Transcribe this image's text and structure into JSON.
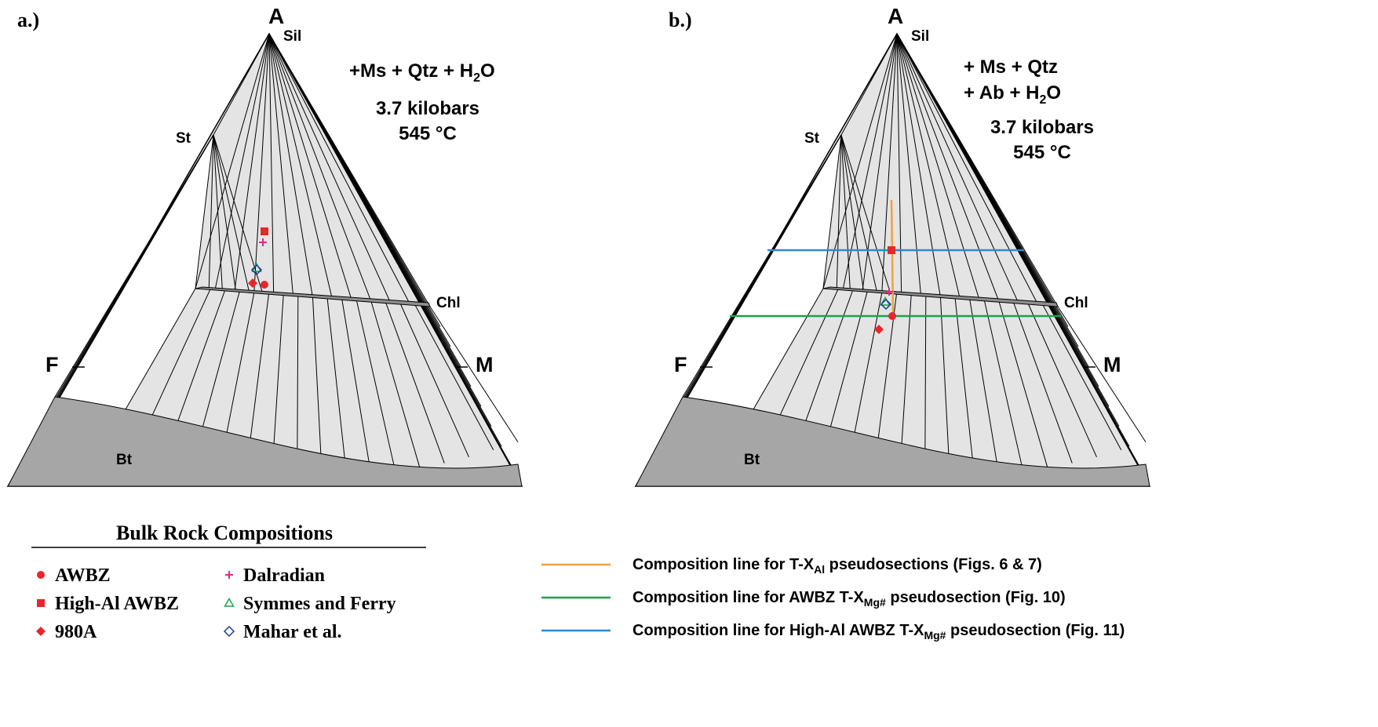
{
  "panel_a": {
    "tag": "a.)",
    "apex_labels": {
      "A": "A",
      "Sil": "Sil",
      "St": "St",
      "Chl": "Chl",
      "F": "F",
      "M": "M",
      "Bt": "Bt"
    },
    "assemblage": {
      "line1": "+Ms + Qtz + H",
      "line1_sub": "2",
      "line1_tail": "O"
    },
    "pressure": "3.7 kilobars",
    "temperature": "545 °C"
  },
  "panel_b": {
    "tag": "b.)",
    "apex_labels": {
      "A": "A",
      "Sil": "Sil",
      "St": "St",
      "Chl": "Chl",
      "F": "F",
      "M": "M",
      "Bt": "Bt"
    },
    "assemblage": {
      "line1": "+ Ms + Qtz",
      "line2": "+ Ab + H",
      "line2_sub": "2",
      "line2_tail": "O"
    },
    "pressure": "3.7 kilobars",
    "temperature": "545 °C"
  },
  "legend": {
    "title": "Bulk Rock Compositions",
    "items": [
      {
        "label": "AWBZ",
        "marker": "circle",
        "color": "#e8262b"
      },
      {
        "label": "High-Al AWBZ",
        "marker": "square",
        "color": "#e8262b"
      },
      {
        "label": "980A",
        "marker": "diamond-filled",
        "color": "#e8262b"
      },
      {
        "label": "Dalradian",
        "marker": "plus",
        "color": "#e0287d"
      },
      {
        "label": "Symmes and Ferry",
        "marker": "triangle-open",
        "color": "#1aa34a"
      },
      {
        "label": "Mahar et al.",
        "marker": "diamond-open",
        "color": "#1f3c94"
      }
    ]
  },
  "line_legend": [
    {
      "color": "#f2a03d",
      "pre": "Composition line for T-X",
      "sub": "Al",
      "post": " pseudosections (Figs. 6 & 7)"
    },
    {
      "color": "#1aa34a",
      "pre": "Composition line for AWBZ T-X",
      "sub": "Mg#",
      "post": " pseudosection (Fig. 10)"
    },
    {
      "color": "#2a8ad0",
      "pre": "Composition line for High-Al AWBZ T-X",
      "sub": "Mg#",
      "post": " pseudosection (Fig. 11)"
    }
  ],
  "colors": {
    "fill_light": "#e4e4e4",
    "fill_dark": "#a6a6a6",
    "fill_chl": "#8e8e8e"
  }
}
